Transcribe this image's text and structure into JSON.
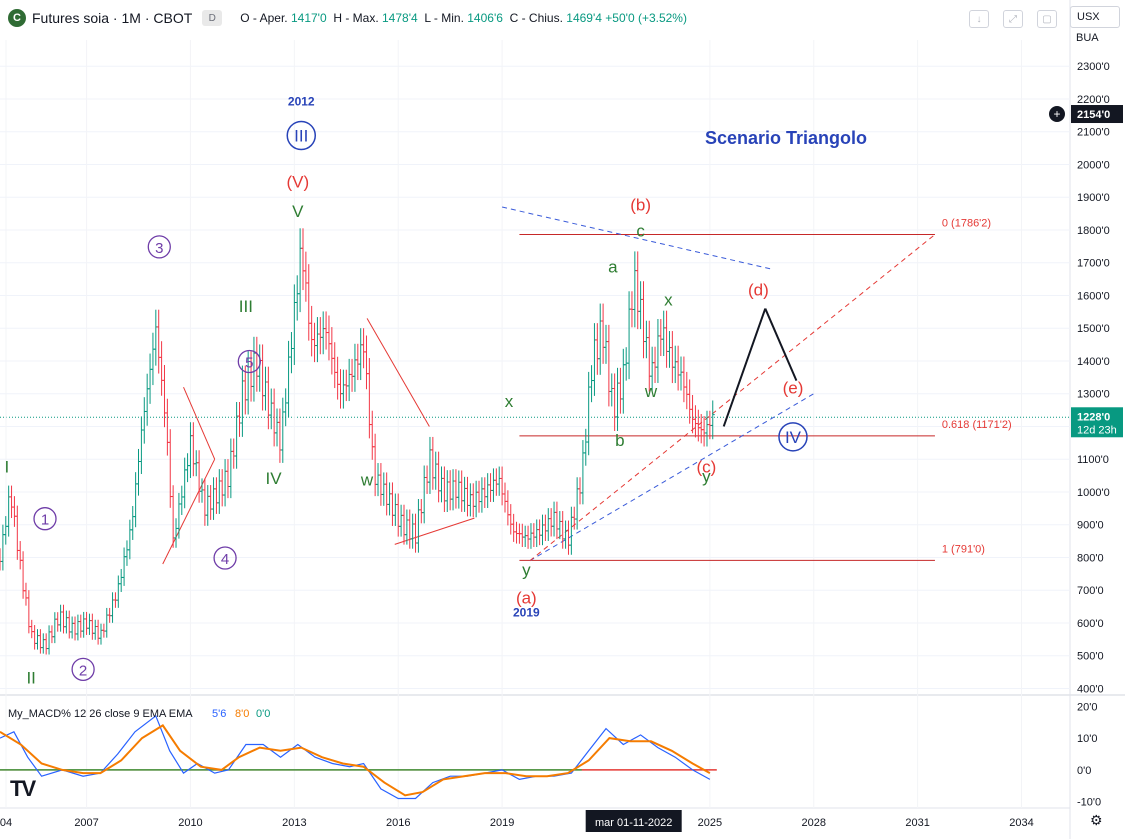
{
  "header": {
    "logo_letter": "C",
    "symbol": "Futures soia · 1M · CBOT",
    "badge": "D",
    "open_label": "O - Aper.",
    "open": "1417'0",
    "high_label": "H - Max.",
    "high": "1478'4",
    "low_label": "L - Min.",
    "low": "1406'6",
    "close_label": "C - Chius.",
    "close": "1469'4",
    "change": "+50'0 (+3.52%)"
  },
  "toolbar": {
    "icons": [
      "download-icon",
      "expand-icon",
      "screenshot-icon"
    ]
  },
  "units": {
    "currency": "USX",
    "mode": "BUA"
  },
  "price_scale": {
    "ticks": [
      "2300'0",
      "2200'0",
      "2100'0",
      "2000'0",
      "1900'0",
      "1800'0",
      "1700'0",
      "1600'0",
      "1500'0",
      "1400'0",
      "1300'0",
      "1200'0",
      "1100'0",
      "1000'0",
      "900'0",
      "800'0",
      "700'0",
      "600'0",
      "500'0",
      "400'0"
    ],
    "hover_label": "2154'0",
    "last_price": "1228'0",
    "countdown": "12d 23h"
  },
  "macd_scale": {
    "ticks": [
      "20'0",
      "10'0",
      "0'0",
      "-10'0"
    ]
  },
  "time_axis": {
    "labels": [
      "04",
      "2007",
      "2010",
      "2013",
      "2016",
      "2019",
      "2025",
      "2028",
      "2031",
      "2034"
    ],
    "crosshair_label": "mar 01-11-2022"
  },
  "chart_data": {
    "type": "candlestick",
    "title": "Futures soia · 1M · CBOT",
    "annotation_title": "Scenario Triangolo",
    "ylim": [
      380,
      2380
    ],
    "xlim": [
      2004.0,
      2034.9
    ],
    "closes": [
      {
        "t": 2004.0,
        "v": 800
      },
      {
        "t": 2004.3,
        "v": 1000
      },
      {
        "t": 2004.6,
        "v": 760
      },
      {
        "t": 2004.9,
        "v": 560
      },
      {
        "t": 2005.3,
        "v": 530
      },
      {
        "t": 2005.7,
        "v": 620
      },
      {
        "t": 2006.1,
        "v": 580
      },
      {
        "t": 2006.5,
        "v": 600
      },
      {
        "t": 2006.9,
        "v": 560
      },
      {
        "t": 2007.4,
        "v": 700
      },
      {
        "t": 2007.8,
        "v": 900
      },
      {
        "t": 2008.1,
        "v": 1200
      },
      {
        "t": 2008.5,
        "v": 1500
      },
      {
        "t": 2008.8,
        "v": 1200
      },
      {
        "t": 2009.0,
        "v": 850
      },
      {
        "t": 2009.5,
        "v": 1150
      },
      {
        "t": 2009.9,
        "v": 950
      },
      {
        "t": 2010.3,
        "v": 1000
      },
      {
        "t": 2010.6,
        "v": 1050
      },
      {
        "t": 2011.0,
        "v": 1300
      },
      {
        "t": 2011.4,
        "v": 1400
      },
      {
        "t": 2011.8,
        "v": 1250
      },
      {
        "t": 2012.1,
        "v": 1150
      },
      {
        "t": 2012.4,
        "v": 1450
      },
      {
        "t": 2012.7,
        "v": 1750
      },
      {
        "t": 2013.0,
        "v": 1450
      },
      {
        "t": 2013.4,
        "v": 1500
      },
      {
        "t": 2013.8,
        "v": 1300
      },
      {
        "t": 2014.1,
        "v": 1350
      },
      {
        "t": 2014.5,
        "v": 1450
      },
      {
        "t": 2014.8,
        "v": 1050
      },
      {
        "t": 2015.2,
        "v": 980
      },
      {
        "t": 2015.6,
        "v": 900
      },
      {
        "t": 2016.0,
        "v": 870
      },
      {
        "t": 2016.4,
        "v": 1100
      },
      {
        "t": 2016.8,
        "v": 1000
      },
      {
        "t": 2017.2,
        "v": 1010
      },
      {
        "t": 2017.6,
        "v": 970
      },
      {
        "t": 2018.0,
        "v": 1000
      },
      {
        "t": 2018.4,
        "v": 1040
      },
      {
        "t": 2018.8,
        "v": 880
      },
      {
        "t": 2019.2,
        "v": 860
      },
      {
        "t": 2019.6,
        "v": 880
      },
      {
        "t": 2020.0,
        "v": 920
      },
      {
        "t": 2020.4,
        "v": 850
      },
      {
        "t": 2020.8,
        "v": 1050
      },
      {
        "t": 2021.1,
        "v": 1400
      },
      {
        "t": 2021.4,
        "v": 1500
      },
      {
        "t": 2021.7,
        "v": 1250
      },
      {
        "t": 2022.0,
        "v": 1350
      },
      {
        "t": 2022.3,
        "v": 1650
      },
      {
        "t": 2022.5,
        "v": 1550
      },
      {
        "t": 2022.8,
        "v": 1350
      },
      {
        "t": 2023.1,
        "v": 1500
      },
      {
        "t": 2023.4,
        "v": 1400
      },
      {
        "t": 2023.7,
        "v": 1350
      },
      {
        "t": 2024.0,
        "v": 1220
      },
      {
        "t": 2024.3,
        "v": 1180
      },
      {
        "t": 2024.6,
        "v": 1228
      }
    ],
    "fibonacci": [
      {
        "label": "0 (1786'2)",
        "value": 1786.2
      },
      {
        "label": "0.618 (1171'2)",
        "value": 1171.2
      },
      {
        "label": "1 (791'0)",
        "value": 791.0
      }
    ],
    "wave_labels": {
      "green": [
        {
          "text": "I",
          "t": 2004.2,
          "v": 1060
        },
        {
          "text": "II",
          "t": 2004.9,
          "v": 415
        },
        {
          "text": "III",
          "t": 2011.1,
          "v": 1550
        },
        {
          "text": "IV",
          "t": 2011.9,
          "v": 1025
        },
        {
          "text": "V",
          "t": 2012.6,
          "v": 1840
        },
        {
          "text": "w",
          "t": 2014.6,
          "v": 1020
        },
        {
          "text": "x",
          "t": 2018.7,
          "v": 1260
        },
        {
          "text": "y",
          "t": 2019.2,
          "v": 745
        },
        {
          "text": "a",
          "t": 2021.7,
          "v": 1670
        },
        {
          "text": "b",
          "t": 2021.9,
          "v": 1140
        },
        {
          "text": "c",
          "t": 2022.5,
          "v": 1780
        },
        {
          "text": "w",
          "t": 2022.8,
          "v": 1290
        },
        {
          "text": "x",
          "t": 2023.3,
          "v": 1570
        },
        {
          "text": "y",
          "t": 2024.4,
          "v": 1030
        }
      ],
      "circled": [
        {
          "text": "1",
          "t": 2005.3,
          "v": 900
        },
        {
          "text": "2",
          "t": 2006.4,
          "v": 440
        },
        {
          "text": "3",
          "t": 2008.6,
          "v": 1730
        },
        {
          "text": "4",
          "t": 2010.5,
          "v": 780
        },
        {
          "text": "5",
          "t": 2011.2,
          "v": 1380
        }
      ],
      "red": [
        {
          "text": "(V)",
          "t": 2012.6,
          "v": 1930
        },
        {
          "text": "(a)",
          "t": 2019.2,
          "v": 660
        },
        {
          "text": "(b)",
          "t": 2022.5,
          "v": 1860
        },
        {
          "text": "(c)",
          "t": 2024.4,
          "v": 1060
        },
        {
          "text": "(d)",
          "t": 2025.9,
          "v": 1600
        },
        {
          "text": "(e)",
          "t": 2026.9,
          "v": 1300
        }
      ],
      "blue_circled": [
        {
          "text": "III",
          "t": 2012.7,
          "v": 2070
        },
        {
          "text": "IV",
          "t": 2026.9,
          "v": 1150
        }
      ],
      "blue_years": [
        {
          "text": "2012",
          "t": 2012.7,
          "v": 2180
        },
        {
          "text": "2019",
          "t": 2019.2,
          "v": 620
        }
      ]
    },
    "macd": {
      "title": "My_MACD% 12 26 close 9 EMA EMA",
      "values": [
        "5'6",
        "8'0",
        "0'0"
      ],
      "ylim": [
        -12,
        22
      ],
      "macd_line": [
        {
          "t": 2004.0,
          "v": 10
        },
        {
          "t": 2004.4,
          "v": 12
        },
        {
          "t": 2004.8,
          "v": 4
        },
        {
          "t": 2005.2,
          "v": -2
        },
        {
          "t": 2005.8,
          "v": 0
        },
        {
          "t": 2006.4,
          "v": -2
        },
        {
          "t": 2006.9,
          "v": -1
        },
        {
          "t": 2007.4,
          "v": 5
        },
        {
          "t": 2007.9,
          "v": 12
        },
        {
          "t": 2008.5,
          "v": 17
        },
        {
          "t": 2008.9,
          "v": 6
        },
        {
          "t": 2009.3,
          "v": -1
        },
        {
          "t": 2009.7,
          "v": 2
        },
        {
          "t": 2010.2,
          "v": -1
        },
        {
          "t": 2010.6,
          "v": 0
        },
        {
          "t": 2011.1,
          "v": 8
        },
        {
          "t": 2011.6,
          "v": 8
        },
        {
          "t": 2012.1,
          "v": 4
        },
        {
          "t": 2012.6,
          "v": 8
        },
        {
          "t": 2013.1,
          "v": 4
        },
        {
          "t": 2013.6,
          "v": 2
        },
        {
          "t": 2014.1,
          "v": 1
        },
        {
          "t": 2014.5,
          "v": 2
        },
        {
          "t": 2015.0,
          "v": -6
        },
        {
          "t": 2015.5,
          "v": -9
        },
        {
          "t": 2016.0,
          "v": -9
        },
        {
          "t": 2016.5,
          "v": -4
        },
        {
          "t": 2017.0,
          "v": -2
        },
        {
          "t": 2017.5,
          "v": -2
        },
        {
          "t": 2018.0,
          "v": -1
        },
        {
          "t": 2018.5,
          "v": 0
        },
        {
          "t": 2019.0,
          "v": -3
        },
        {
          "t": 2019.5,
          "v": -2
        },
        {
          "t": 2020.0,
          "v": -2
        },
        {
          "t": 2020.5,
          "v": -1
        },
        {
          "t": 2021.0,
          "v": 6
        },
        {
          "t": 2021.5,
          "v": 13
        },
        {
          "t": 2022.0,
          "v": 8
        },
        {
          "t": 2022.5,
          "v": 11
        },
        {
          "t": 2023.0,
          "v": 7
        },
        {
          "t": 2023.5,
          "v": 4
        },
        {
          "t": 2024.0,
          "v": 0
        },
        {
          "t": 2024.5,
          "v": -3
        }
      ],
      "signal_line": [
        {
          "t": 2004.0,
          "v": 12
        },
        {
          "t": 2004.6,
          "v": 8
        },
        {
          "t": 2005.2,
          "v": 2
        },
        {
          "t": 2005.8,
          "v": 0
        },
        {
          "t": 2006.4,
          "v": -1
        },
        {
          "t": 2006.9,
          "v": -1
        },
        {
          "t": 2007.5,
          "v": 3
        },
        {
          "t": 2008.1,
          "v": 10
        },
        {
          "t": 2008.7,
          "v": 14
        },
        {
          "t": 2009.2,
          "v": 6
        },
        {
          "t": 2009.8,
          "v": 1
        },
        {
          "t": 2010.4,
          "v": 0
        },
        {
          "t": 2010.9,
          "v": 4
        },
        {
          "t": 2011.5,
          "v": 7
        },
        {
          "t": 2012.1,
          "v": 6
        },
        {
          "t": 2012.7,
          "v": 7
        },
        {
          "t": 2013.3,
          "v": 4
        },
        {
          "t": 2013.9,
          "v": 2
        },
        {
          "t": 2014.5,
          "v": 1
        },
        {
          "t": 2015.1,
          "v": -4
        },
        {
          "t": 2015.7,
          "v": -8
        },
        {
          "t": 2016.2,
          "v": -7
        },
        {
          "t": 2016.8,
          "v": -3
        },
        {
          "t": 2017.4,
          "v": -2
        },
        {
          "t": 2018.0,
          "v": -1
        },
        {
          "t": 2018.6,
          "v": -1
        },
        {
          "t": 2019.2,
          "v": -2
        },
        {
          "t": 2019.8,
          "v": -2
        },
        {
          "t": 2020.4,
          "v": -1
        },
        {
          "t": 2021.0,
          "v": 3
        },
        {
          "t": 2021.6,
          "v": 10
        },
        {
          "t": 2022.2,
          "v": 9
        },
        {
          "t": 2022.8,
          "v": 9
        },
        {
          "t": 2023.4,
          "v": 6
        },
        {
          "t": 2024.0,
          "v": 2
        },
        {
          "t": 2024.5,
          "v": -1
        }
      ],
      "zero_line": 0
    }
  },
  "colors": {
    "bull": "#089981",
    "bear": "#f23645",
    "wave_green": "#2e7d32",
    "circle": "#6f3da8",
    "blue": "#2843b8",
    "red_label": "#e53935",
    "macd": "#2962ff",
    "signal": "#f57c00"
  }
}
